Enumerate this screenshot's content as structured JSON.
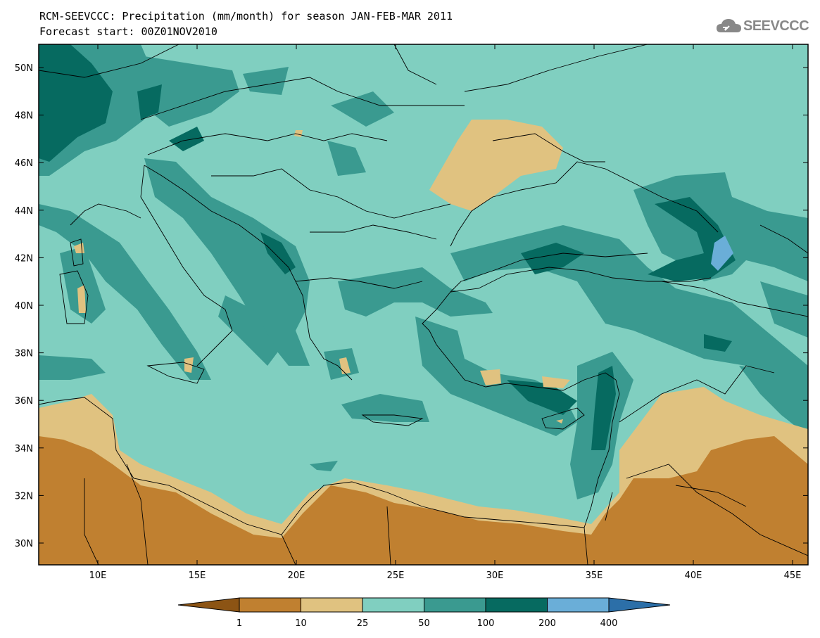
{
  "title": {
    "line1": "RCM-SEEVCCC: Precipitation (mm/month) for season JAN-FEB-MAR 2011",
    "line2": "Forecast start: 00Z01NOV2010"
  },
  "logo": {
    "text": "SEEVCCC",
    "icon": "cloud-icon"
  },
  "map": {
    "lat_ticks": [
      "50N",
      "48N",
      "46N",
      "44N",
      "42N",
      "40N",
      "38N",
      "36N",
      "34N",
      "32N",
      "30N"
    ],
    "lon_ticks": [
      "10E",
      "15E",
      "20E",
      "25E",
      "30E",
      "35E",
      "40E",
      "45E"
    ],
    "background_color": "#80cfc0"
  },
  "colorbar": {
    "labels": [
      "1",
      "10",
      "25",
      "50",
      "100",
      "200",
      "400"
    ],
    "colors": [
      "#8c5414",
      "#c08030",
      "#e0c280",
      "#80cfc0",
      "#3a9a90",
      "#066a60",
      "#6aaed8",
      "#2c6fa8"
    ]
  }
}
